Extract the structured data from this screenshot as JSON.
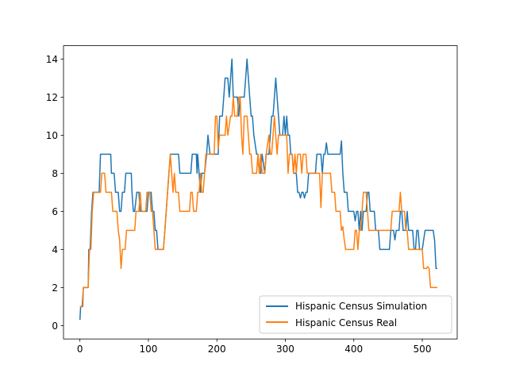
{
  "chart_data": {
    "type": "line",
    "title": "",
    "xlabel": "",
    "ylabel": "",
    "xlim": [
      -24,
      551
    ],
    "ylim": [
      -0.7,
      14.7
    ],
    "x_ticks": [
      0,
      100,
      200,
      300,
      400,
      500
    ],
    "x_tick_labels": [
      "0",
      "100",
      "200",
      "300",
      "400",
      "500"
    ],
    "y_ticks": [
      0,
      2,
      4,
      6,
      8,
      10,
      12,
      14
    ],
    "y_tick_labels": [
      "0",
      "2",
      "4",
      "6",
      "8",
      "10",
      "12",
      "14"
    ],
    "grid": false,
    "legend_position": "lower-right",
    "series": [
      {
        "name": "Hispanic Census Simulation",
        "color": "#1f77b4",
        "points": [
          [
            0,
            0.3
          ],
          [
            1,
            1
          ],
          [
            4,
            1
          ],
          [
            5,
            2
          ],
          [
            12,
            2
          ],
          [
            13,
            4
          ],
          [
            15,
            4
          ],
          [
            17,
            6
          ],
          [
            19,
            7
          ],
          [
            28,
            7
          ],
          [
            30,
            9
          ],
          [
            45,
            9
          ],
          [
            46,
            8
          ],
          [
            50,
            8
          ],
          [
            52,
            7
          ],
          [
            56,
            7
          ],
          [
            58,
            6
          ],
          [
            60,
            6
          ],
          [
            62,
            7
          ],
          [
            65,
            7
          ],
          [
            67,
            8
          ],
          [
            75,
            8
          ],
          [
            76,
            7
          ],
          [
            78,
            6
          ],
          [
            80,
            6
          ],
          [
            83,
            7
          ],
          [
            86,
            7
          ],
          [
            88,
            6
          ],
          [
            98,
            6
          ],
          [
            100,
            7
          ],
          [
            104,
            7
          ],
          [
            106,
            6
          ],
          [
            108,
            6
          ],
          [
            110,
            5
          ],
          [
            112,
            5
          ],
          [
            114,
            4
          ],
          [
            122,
            4
          ],
          [
            124,
            5
          ],
          [
            126,
            6
          ],
          [
            128,
            7
          ],
          [
            130,
            8
          ],
          [
            132,
            9
          ],
          [
            144,
            9
          ],
          [
            146,
            8
          ],
          [
            162,
            8
          ],
          [
            164,
            9
          ],
          [
            170,
            9
          ],
          [
            171,
            8
          ],
          [
            172,
            9
          ],
          [
            174,
            8
          ],
          [
            176,
            7
          ],
          [
            178,
            8
          ],
          [
            182,
            8
          ],
          [
            185,
            9
          ],
          [
            187,
            10
          ],
          [
            190,
            9
          ],
          [
            202,
            9
          ],
          [
            204,
            11
          ],
          [
            208,
            11
          ],
          [
            210,
            12
          ],
          [
            212,
            13
          ],
          [
            216,
            13
          ],
          [
            218,
            12
          ],
          [
            220,
            13
          ],
          [
            222,
            14
          ],
          [
            224,
            12
          ],
          [
            226,
            12
          ],
          [
            227,
            12
          ],
          [
            230,
            12
          ],
          [
            232,
            11
          ],
          [
            234,
            12
          ],
          [
            240,
            12
          ],
          [
            242,
            13
          ],
          [
            244,
            14
          ],
          [
            246,
            13
          ],
          [
            248,
            12
          ],
          [
            250,
            11
          ],
          [
            252,
            11
          ],
          [
            254,
            10
          ],
          [
            258,
            9
          ],
          [
            260,
            9
          ],
          [
            262,
            8
          ],
          [
            264,
            8
          ],
          [
            266,
            9
          ],
          [
            270,
            8
          ],
          [
            272,
            9
          ],
          [
            276,
            9
          ],
          [
            278,
            10
          ],
          [
            280,
            11
          ],
          [
            282,
            11
          ],
          [
            284,
            12
          ],
          [
            286,
            13
          ],
          [
            288,
            12
          ],
          [
            290,
            11
          ],
          [
            292,
            10
          ],
          [
            296,
            10
          ],
          [
            298,
            11
          ],
          [
            300,
            10
          ],
          [
            302,
            11
          ],
          [
            304,
            10
          ],
          [
            306,
            10
          ],
          [
            308,
            9
          ],
          [
            310,
            9
          ],
          [
            312,
            8
          ],
          [
            316,
            8
          ],
          [
            318,
            7
          ],
          [
            320,
            7
          ],
          [
            322,
            6.7
          ],
          [
            324,
            7
          ],
          [
            326,
            7
          ],
          [
            328,
            6.7
          ],
          [
            330,
            7
          ],
          [
            332,
            7
          ],
          [
            334,
            8
          ],
          [
            344,
            8
          ],
          [
            346,
            9
          ],
          [
            352,
            9
          ],
          [
            354,
            8
          ],
          [
            356,
            9
          ],
          [
            358,
            9
          ],
          [
            360,
            9.6
          ],
          [
            362,
            9
          ],
          [
            380,
            9
          ],
          [
            382,
            9.7
          ],
          [
            384,
            8
          ],
          [
            386,
            7
          ],
          [
            390,
            7
          ],
          [
            392,
            6
          ],
          [
            400,
            6
          ],
          [
            402,
            5.5
          ],
          [
            404,
            6
          ],
          [
            406,
            6
          ],
          [
            408,
            5
          ],
          [
            410,
            6
          ],
          [
            412,
            5
          ],
          [
            414,
            6
          ],
          [
            418,
            6
          ],
          [
            420,
            7
          ],
          [
            422,
            7
          ],
          [
            424,
            6
          ],
          [
            430,
            6
          ],
          [
            432,
            5
          ],
          [
            436,
            5
          ],
          [
            438,
            4
          ],
          [
            444,
            4
          ],
          [
            448,
            4
          ],
          [
            452,
            4
          ],
          [
            454,
            5
          ],
          [
            458,
            5
          ],
          [
            460,
            4.5
          ],
          [
            462,
            5
          ],
          [
            466,
            5
          ],
          [
            468,
            6
          ],
          [
            470,
            6
          ],
          [
            472,
            5
          ],
          [
            476,
            5
          ],
          [
            478,
            6
          ],
          [
            480,
            5
          ],
          [
            486,
            5
          ],
          [
            488,
            4
          ],
          [
            490,
            4
          ],
          [
            492,
            5
          ],
          [
            494,
            5
          ],
          [
            496,
            4
          ],
          [
            500,
            4
          ],
          [
            504,
            5
          ],
          [
            516,
            5
          ],
          [
            518,
            4.5
          ],
          [
            520,
            3
          ],
          [
            522,
            3
          ]
        ]
      },
      {
        "name": "Hispanic Census Real",
        "color": "#ff7f0e",
        "points": [
          [
            0,
            1
          ],
          [
            3,
            1
          ],
          [
            5,
            2
          ],
          [
            12,
            2
          ],
          [
            14,
            4
          ],
          [
            16,
            4
          ],
          [
            18,
            6
          ],
          [
            20,
            7
          ],
          [
            30,
            7
          ],
          [
            32,
            8
          ],
          [
            36,
            8
          ],
          [
            38,
            7
          ],
          [
            46,
            7
          ],
          [
            48,
            6
          ],
          [
            54,
            6
          ],
          [
            56,
            5
          ],
          [
            58,
            4.5
          ],
          [
            60,
            3
          ],
          [
            62,
            4
          ],
          [
            66,
            4
          ],
          [
            68,
            5
          ],
          [
            80,
            5
          ],
          [
            82,
            6
          ],
          [
            86,
            6
          ],
          [
            88,
            7
          ],
          [
            90,
            6
          ],
          [
            96,
            6
          ],
          [
            98,
            7
          ],
          [
            102,
            7
          ],
          [
            104,
            6
          ],
          [
            106,
            6
          ],
          [
            108,
            5
          ],
          [
            110,
            4
          ],
          [
            122,
            4
          ],
          [
            124,
            5
          ],
          [
            126,
            6
          ],
          [
            128,
            7
          ],
          [
            130,
            8
          ],
          [
            132,
            9
          ],
          [
            134,
            8
          ],
          [
            136,
            7
          ],
          [
            138,
            8
          ],
          [
            140,
            7
          ],
          [
            144,
            7
          ],
          [
            146,
            6
          ],
          [
            160,
            6
          ],
          [
            162,
            7
          ],
          [
            164,
            7
          ],
          [
            166,
            6
          ],
          [
            170,
            6
          ],
          [
            172,
            7
          ],
          [
            174,
            7
          ],
          [
            176,
            8
          ],
          [
            178,
            7
          ],
          [
            180,
            7
          ],
          [
            182,
            8
          ],
          [
            184,
            9
          ],
          [
            196,
            9
          ],
          [
            198,
            11
          ],
          [
            200,
            11
          ],
          [
            202,
            9.3
          ],
          [
            204,
            10
          ],
          [
            212,
            10
          ],
          [
            214,
            11
          ],
          [
            216,
            10
          ],
          [
            220,
            11
          ],
          [
            222,
            11
          ],
          [
            224,
            12
          ],
          [
            226,
            11
          ],
          [
            230,
            11
          ],
          [
            232,
            12
          ],
          [
            234,
            12
          ],
          [
            236,
            10
          ],
          [
            238,
            9
          ],
          [
            240,
            11
          ],
          [
            244,
            11
          ],
          [
            246,
            10
          ],
          [
            248,
            9
          ],
          [
            250,
            9
          ],
          [
            252,
            8
          ],
          [
            258,
            8
          ],
          [
            260,
            9
          ],
          [
            262,
            8
          ],
          [
            264,
            9
          ],
          [
            266,
            8
          ],
          [
            270,
            8
          ],
          [
            272,
            9
          ],
          [
            276,
            10
          ],
          [
            278,
            9
          ],
          [
            280,
            9
          ],
          [
            282,
            10
          ],
          [
            284,
            11
          ],
          [
            286,
            10
          ],
          [
            288,
            9
          ],
          [
            290,
            10
          ],
          [
            302,
            10
          ],
          [
            304,
            8
          ],
          [
            306,
            9
          ],
          [
            310,
            9
          ],
          [
            312,
            8
          ],
          [
            314,
            9
          ],
          [
            316,
            8
          ],
          [
            318,
            9
          ],
          [
            322,
            9
          ],
          [
            324,
            8
          ],
          [
            326,
            9
          ],
          [
            330,
            9
          ],
          [
            332,
            8
          ],
          [
            334,
            8
          ],
          [
            350,
            8
          ],
          [
            352,
            6.2
          ],
          [
            354,
            8
          ],
          [
            366,
            8
          ],
          [
            368,
            7
          ],
          [
            372,
            7
          ],
          [
            374,
            6
          ],
          [
            380,
            6
          ],
          [
            382,
            5
          ],
          [
            384,
            5.2
          ],
          [
            386,
            4.5
          ],
          [
            388,
            4
          ],
          [
            400,
            4
          ],
          [
            402,
            5
          ],
          [
            404,
            5
          ],
          [
            406,
            4
          ],
          [
            408,
            5
          ],
          [
            410,
            5
          ],
          [
            412,
            6
          ],
          [
            414,
            7
          ],
          [
            418,
            7
          ],
          [
            420,
            6
          ],
          [
            422,
            5
          ],
          [
            454,
            5
          ],
          [
            456,
            6
          ],
          [
            466,
            6
          ],
          [
            468,
            7
          ],
          [
            470,
            6
          ],
          [
            474,
            6
          ],
          [
            476,
            5
          ],
          [
            478,
            5
          ],
          [
            480,
            4
          ],
          [
            500,
            4
          ],
          [
            502,
            3
          ],
          [
            506,
            3
          ],
          [
            508,
            3.1
          ],
          [
            510,
            3
          ],
          [
            512,
            2
          ],
          [
            522,
            2
          ]
        ]
      }
    ]
  }
}
